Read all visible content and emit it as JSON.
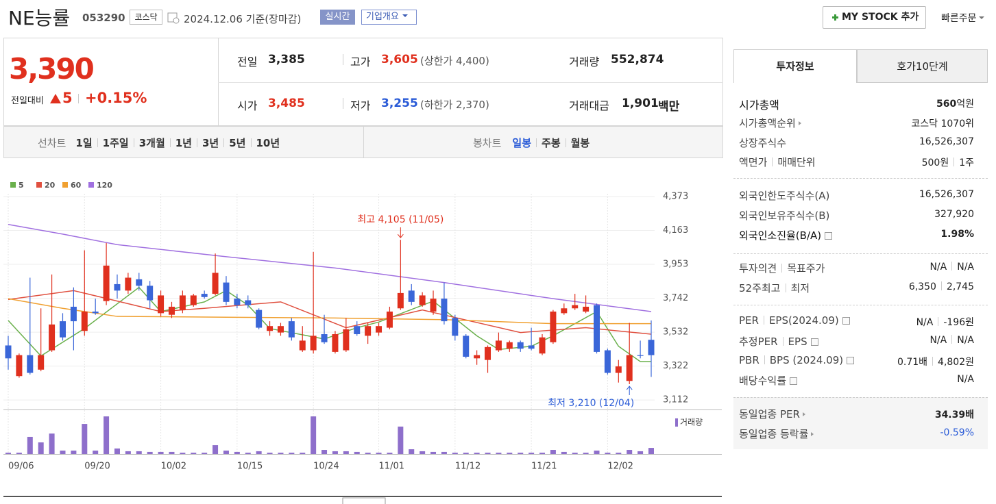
{
  "header": {
    "name": "NE능률",
    "code": "053290",
    "market": "코스닥",
    "date": "2024.12.06 기준(장마감)",
    "realtime": "실시간",
    "overview": "기업개요",
    "mystock": "MY STOCK 추가",
    "quick_order": "빠른주문"
  },
  "quote": {
    "price": "3,390",
    "change_label": "전일대비",
    "change": "5",
    "change_rate": "+0.15%",
    "items": [
      {
        "label": "전일",
        "value": "3,385"
      },
      {
        "label": "고가",
        "value": "3,605",
        "note": "(상한가 4,400)"
      },
      {
        "label": "거래량",
        "value": "552,874"
      },
      {
        "label": "시가",
        "value": "3,485"
      },
      {
        "label": "저가",
        "value": "3,255",
        "note": "(하한가 2,370)"
      },
      {
        "label": "거래대금",
        "value": "1,901",
        "unit": "백만"
      }
    ]
  },
  "period_bar": {
    "line_chart": "선차트",
    "line_periods": [
      "1일",
      "1주일",
      "3개월",
      "1년",
      "3년",
      "5년",
      "10년"
    ],
    "candle_chart": "봉차트",
    "candle_periods": [
      "일봉",
      "주봉",
      "월봉"
    ]
  },
  "chart_data": {
    "type": "candlestick",
    "categories": [
      "09/06",
      null,
      null,
      null,
      null,
      null,
      null,
      "09/20",
      null,
      null,
      null,
      null,
      null,
      null,
      "10/02",
      null,
      null,
      null,
      null,
      null,
      null,
      "10/15",
      null,
      null,
      null,
      null,
      null,
      null,
      "10/24",
      null,
      null,
      null,
      null,
      null,
      "11/01",
      null,
      null,
      null,
      null,
      null,
      null,
      "11/12",
      null,
      null,
      null,
      null,
      null,
      null,
      "11/21",
      null,
      null,
      null,
      null,
      null,
      null,
      "12/02",
      null,
      null,
      null,
      null
    ],
    "open": [
      3450,
      3260,
      3390,
      3300,
      3420,
      3600,
      3690,
      3540,
      3660,
      3725,
      3830,
      3790,
      3860,
      3820,
      3650,
      3640,
      3670,
      3700,
      3770,
      3770,
      3840,
      3740,
      3730,
      3670,
      3540,
      3530,
      3600,
      3420,
      3420,
      3520,
      3410,
      3420,
      3570,
      3510,
      3530,
      3560,
      3680,
      3790,
      3700,
      3660,
      3740,
      3620,
      3510,
      3370,
      3360,
      3420,
      3430,
      3470,
      3450,
      3400,
      3470,
      3650,
      3680,
      3660,
      3700,
      3420,
      3280,
      3230,
      3390,
      3485
    ],
    "high": [
      3510,
      3400,
      3870,
      3680,
      3890,
      3650,
      3810,
      4040,
      3740,
      4085,
      3890,
      3900,
      3900,
      3850,
      3790,
      3720,
      3790,
      3770,
      3790,
      4020,
      3880,
      3770,
      3760,
      3680,
      3600,
      3590,
      3620,
      3570,
      4030,
      3640,
      3540,
      3620,
      3600,
      3590,
      3590,
      3690,
      4105,
      3830,
      3780,
      3790,
      3840,
      3640,
      3520,
      3420,
      3450,
      3530,
      3480,
      3480,
      3560,
      3520,
      3670,
      3710,
      3770,
      3760,
      3710,
      3430,
      3360,
      3590,
      3480,
      3605
    ],
    "low": [
      3300,
      3250,
      3270,
      3290,
      3410,
      3480,
      3420,
      3510,
      3640,
      3700,
      3740,
      3770,
      3790,
      3680,
      3630,
      3620,
      3650,
      3690,
      3740,
      3760,
      3700,
      3680,
      3680,
      3550,
      3510,
      3510,
      3480,
      3410,
      3400,
      3460,
      3400,
      3410,
      3510,
      3460,
      3510,
      3550,
      3670,
      3700,
      3690,
      3640,
      3580,
      3480,
      3370,
      3330,
      3280,
      3410,
      3410,
      3410,
      3420,
      3390,
      3460,
      3640,
      3670,
      3650,
      3400,
      3270,
      3220,
      3210,
      3370,
      3255
    ],
    "close": [
      3370,
      3390,
      3280,
      3390,
      3580,
      3500,
      3600,
      3660,
      3650,
      3945,
      3790,
      3870,
      3820,
      3730,
      3760,
      3690,
      3760,
      3760,
      3750,
      3900,
      3720,
      3700,
      3700,
      3560,
      3570,
      3570,
      3500,
      3480,
      3510,
      3470,
      3520,
      3550,
      3520,
      3570,
      3570,
      3660,
      3775,
      3720,
      3760,
      3740,
      3600,
      3510,
      3380,
      3390,
      3440,
      3480,
      3470,
      3430,
      3430,
      3500,
      3660,
      3680,
      3700,
      3690,
      3410,
      3280,
      3320,
      3390,
      3385,
      3390
    ],
    "up_color": "#e0301e",
    "down_color": "#3a66d8",
    "ylim": [
      3053,
      4390
    ],
    "yticks": [
      {
        "value": 3112,
        "label": "3,112"
      },
      {
        "value": 3322,
        "label": "3,322"
      },
      {
        "value": 3532,
        "label": "3,532"
      },
      {
        "value": 3742,
        "label": "3,742"
      },
      {
        "value": 3953,
        "label": "3,953"
      },
      {
        "value": 4163,
        "label": "4,163"
      },
      {
        "value": 4373,
        "label": "4,373"
      }
    ],
    "grid": true,
    "series": [
      {
        "name": "5",
        "color": "#6ab04c",
        "x": [
          0,
          3,
          7,
          12,
          14,
          18,
          20,
          22,
          24,
          29,
          32,
          34,
          39,
          43,
          45,
          48,
          50,
          54,
          56,
          58,
          59
        ],
        "values": [
          3605,
          3385,
          3555,
          3810,
          3660,
          3720,
          3790,
          3700,
          3555,
          3490,
          3560,
          3595,
          3725,
          3510,
          3425,
          3445,
          3510,
          3660,
          3445,
          3350,
          3350
        ]
      },
      {
        "name": "20",
        "color": "#e0503f",
        "x": [
          0,
          6,
          14,
          18,
          25,
          31,
          38,
          47,
          53,
          59
        ],
        "values": [
          3735,
          3790,
          3660,
          3680,
          3720,
          3560,
          3670,
          3530,
          3560,
          3520
        ]
      },
      {
        "name": "60",
        "color": "#f0a030",
        "x": [
          0,
          5,
          10,
          20,
          30,
          40,
          50,
          59
        ],
        "values": [
          3740,
          3680,
          3630,
          3625,
          3620,
          3610,
          3585,
          3585
        ]
      },
      {
        "name": "120",
        "color": "#a070e0",
        "x": [
          0,
          5,
          10,
          20,
          30,
          40,
          50,
          59
        ],
        "values": [
          4200,
          4140,
          4075,
          4000,
          3930,
          3840,
          3740,
          3660
        ]
      }
    ],
    "volume": {
      "name": "거래량",
      "color": "#8e6fcb",
      "ylim": [
        0,
        3900000
      ],
      "values": [
        120000,
        120000,
        1550000,
        1050000,
        1850000,
        310000,
        310000,
        2720000,
        310000,
        3400000,
        500000,
        250000,
        250000,
        190000,
        190000,
        190000,
        120000,
        120000,
        120000,
        800000,
        310000,
        190000,
        120000,
        250000,
        120000,
        120000,
        120000,
        120000,
        3400000,
        370000,
        250000,
        250000,
        190000,
        120000,
        120000,
        120000,
        2480000,
        430000,
        250000,
        190000,
        190000,
        120000,
        120000,
        120000,
        120000,
        120000,
        120000,
        120000,
        120000,
        120000,
        370000,
        190000,
        120000,
        120000,
        310000,
        120000,
        120000,
        370000,
        250000,
        552874
      ]
    },
    "high_label": "최고 4,105 (11/05)",
    "low_label": "최저 3,210 (12/04)"
  },
  "side_panel": {
    "tabs": [
      "투자정보",
      "호가10단계"
    ],
    "sections": [
      [
        {
          "labels": [
            "시가총액"
          ],
          "values": [
            "560"
          ],
          "unit": "억원"
        },
        {
          "labels": [
            "시가총액순위"
          ],
          "values": [
            "코스닥 1070위"
          ]
        },
        {
          "labels": [
            "상장주식수"
          ],
          "values": [
            "16,526,307"
          ]
        },
        {
          "labels": [
            "액면가",
            "매매단위"
          ],
          "values": [
            "500원",
            "1주"
          ]
        }
      ],
      [
        {
          "labels": [
            "외국인한도주식수(A)"
          ],
          "values": [
            "16,526,307"
          ]
        },
        {
          "labels": [
            "외국인보유주식수(B)"
          ],
          "values": [
            "327,920"
          ]
        },
        {
          "labels": [
            "외국인소진율(B/A)"
          ],
          "values": [
            "1.98%"
          ]
        }
      ],
      [
        {
          "labels": [
            "투자의견",
            "목표주가"
          ],
          "values": [
            "N/A",
            "N/A"
          ]
        },
        {
          "labels": [
            "52주최고",
            "최저"
          ],
          "values": [
            "6,350",
            "2,745"
          ]
        }
      ],
      [
        {
          "labels": [
            "PER",
            "EPS(2024.09)"
          ],
          "values": [
            "N/A",
            "-196원"
          ]
        },
        {
          "labels": [
            "추정PER",
            "EPS"
          ],
          "values": [
            "N/A",
            "N/A"
          ]
        },
        {
          "labels": [
            "PBR",
            "BPS (2024.09)"
          ],
          "values": [
            "0.71배",
            "4,802원"
          ]
        },
        {
          "labels": [
            "배당수익률"
          ],
          "values": [
            "N/A"
          ]
        }
      ],
      [
        {
          "labels": [
            "동일업종 PER"
          ],
          "values": [
            "34.39배"
          ]
        },
        {
          "labels": [
            "동일업종 등락률"
          ],
          "values": [
            "-0.59%"
          ]
        }
      ]
    ]
  }
}
